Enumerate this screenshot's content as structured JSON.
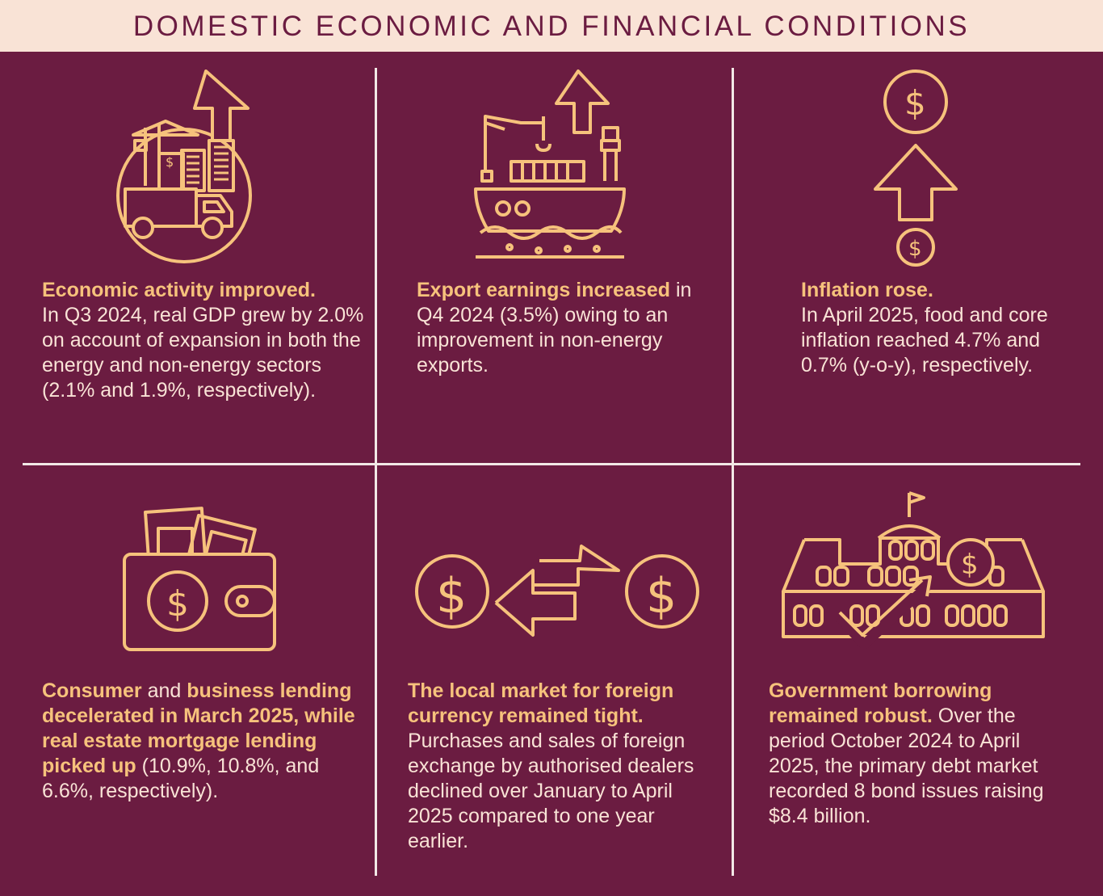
{
  "title": "DOMESTIC ECONOMIC AND FINANCIAL CONDITIONS",
  "colors": {
    "background": "#6b1c41",
    "banner": "#f9e3d6",
    "accent": "#f6c27c",
    "text": "#f9e3d6",
    "divider": "#f2e8e6"
  },
  "panels": [
    {
      "icon": "economy-growth-icon",
      "heading": "Economic activity improved.",
      "body": "In Q3 2024, real GDP grew by 2.0% on account of expansion in both the energy and non-energy sectors (2.1% and 1.9%, respectively)."
    },
    {
      "icon": "export-ship-icon",
      "heading": "Export earnings increased",
      "body": "in Q4 2024 (3.5%) owing to an improvement in non-energy exports."
    },
    {
      "icon": "inflation-dollar-up-icon",
      "heading": "Inflation rose.",
      "body": "In April 2025, food and core inflation reached 4.7% and 0.7% (y-o-y), respectively."
    },
    {
      "icon": "wallet-icon",
      "heading_1": "Consumer",
      "heading_join": "and",
      "heading_2": "business lending decelerated in March 2025, while real estate mortgage lending picked up",
      "body": "(10.9%, 10.8%, and 6.6%, respectively)."
    },
    {
      "icon": "currency-exchange-icon",
      "heading": "The local market for foreign currency remained tight.",
      "body": "Purchases and sales of foreign exchange by authorised dealers declined over January to April 2025 compared to one year earlier."
    },
    {
      "icon": "government-borrowing-icon",
      "heading": "Government borrowing remained robust.",
      "body": "Over the period October 2024 to April 2025, the primary debt market recorded 8 bond issues raising $8.4 billion."
    }
  ]
}
